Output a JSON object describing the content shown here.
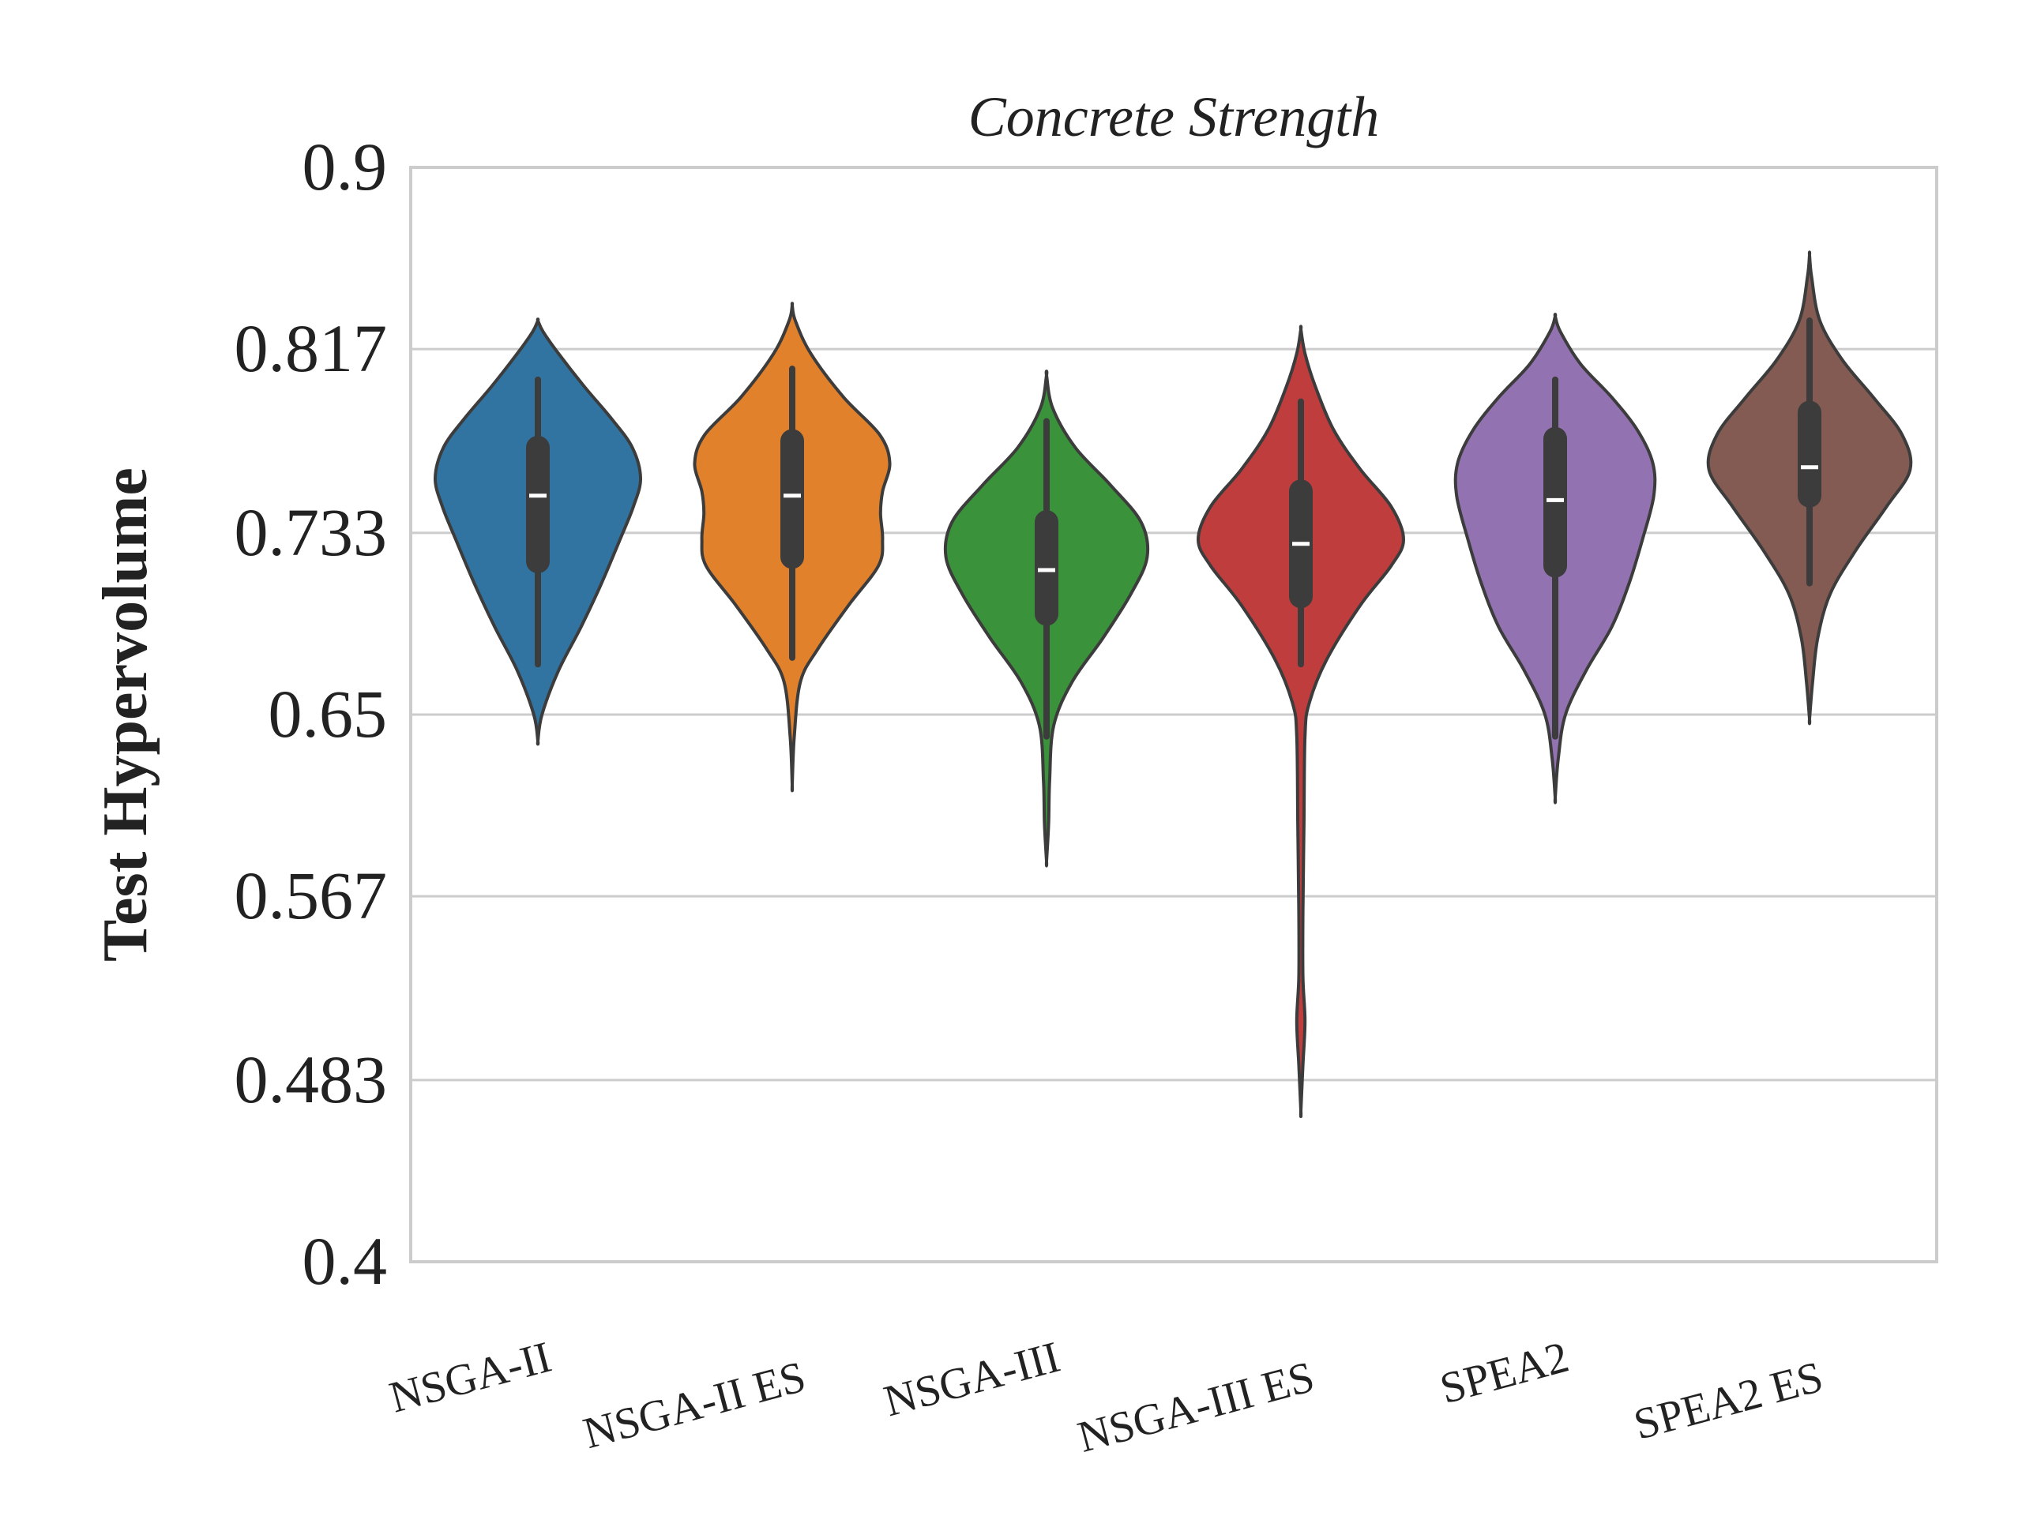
{
  "chart_data": {
    "type": "violin",
    "title": "Concrete Strength",
    "xlabel": "",
    "ylabel": "Test Hypervolume",
    "ylim": [
      0.4,
      0.9
    ],
    "yticks": [
      "0.4",
      "0.483",
      "0.567",
      "0.65",
      "0.733",
      "0.817",
      "0.9"
    ],
    "grid": "horizontal",
    "categories": [
      "NSGA-II",
      "NSGA-II ES",
      "NSGA-III",
      "NSGA-III ES",
      "SPEA2",
      "SPEA2 ES"
    ],
    "colors": [
      "#3274a1",
      "#e1812c",
      "#3a923a",
      "#c03d3e",
      "#9372b2",
      "#845b53"
    ],
    "series": [
      {
        "category": "NSGA-II",
        "min": 0.673,
        "q1": 0.72,
        "median": 0.75,
        "q3": 0.772,
        "max": 0.803,
        "density": [
          [
            0.638,
            0
          ],
          [
            0.65,
            0.04
          ],
          [
            0.67,
            0.2
          ],
          [
            0.69,
            0.42
          ],
          [
            0.71,
            0.62
          ],
          [
            0.73,
            0.8
          ],
          [
            0.745,
            0.93
          ],
          [
            0.758,
            1.0
          ],
          [
            0.772,
            0.92
          ],
          [
            0.785,
            0.72
          ],
          [
            0.8,
            0.45
          ],
          [
            0.815,
            0.2
          ],
          [
            0.825,
            0.05
          ],
          [
            0.83,
            0
          ]
        ]
      },
      {
        "category": "NSGA-II ES",
        "min": 0.676,
        "q1": 0.722,
        "median": 0.75,
        "q3": 0.775,
        "max": 0.808,
        "density": [
          [
            0.618,
            0
          ],
          [
            0.64,
            0.02
          ],
          [
            0.665,
            0.08
          ],
          [
            0.68,
            0.25
          ],
          [
            0.7,
            0.55
          ],
          [
            0.718,
            0.84
          ],
          [
            0.73,
            0.88
          ],
          [
            0.742,
            0.86
          ],
          [
            0.752,
            0.88
          ],
          [
            0.765,
            0.95
          ],
          [
            0.778,
            0.85
          ],
          [
            0.795,
            0.5
          ],
          [
            0.815,
            0.18
          ],
          [
            0.83,
            0.03
          ],
          [
            0.837,
            0
          ]
        ]
      },
      {
        "category": "NSGA-III",
        "min": 0.64,
        "q1": 0.696,
        "median": 0.716,
        "q3": 0.738,
        "max": 0.784,
        "density": [
          [
            0.583,
            0
          ],
          [
            0.6,
            0.02
          ],
          [
            0.62,
            0.03
          ],
          [
            0.645,
            0.07
          ],
          [
            0.665,
            0.25
          ],
          [
            0.685,
            0.55
          ],
          [
            0.705,
            0.82
          ],
          [
            0.722,
            0.98
          ],
          [
            0.738,
            0.92
          ],
          [
            0.755,
            0.62
          ],
          [
            0.772,
            0.28
          ],
          [
            0.79,
            0.06
          ],
          [
            0.805,
            0
          ]
        ]
      },
      {
        "category": "NSGA-III ES",
        "min": 0.673,
        "q1": 0.704,
        "median": 0.728,
        "q3": 0.752,
        "max": 0.793,
        "density": [
          [
            0.469,
            0
          ],
          [
            0.49,
            0.02
          ],
          [
            0.51,
            0.04
          ],
          [
            0.53,
            0.02
          ],
          [
            0.56,
            0.02
          ],
          [
            0.6,
            0.03
          ],
          [
            0.64,
            0.04
          ],
          [
            0.655,
            0.08
          ],
          [
            0.675,
            0.25
          ],
          [
            0.7,
            0.58
          ],
          [
            0.718,
            0.88
          ],
          [
            0.73,
            1.0
          ],
          [
            0.745,
            0.88
          ],
          [
            0.762,
            0.58
          ],
          [
            0.78,
            0.32
          ],
          [
            0.8,
            0.14
          ],
          [
            0.815,
            0.04
          ],
          [
            0.826,
            0
          ]
        ]
      },
      {
        "category": "SPEA2",
        "min": 0.64,
        "q1": 0.718,
        "median": 0.748,
        "q3": 0.776,
        "max": 0.803,
        "density": [
          [
            0.612,
            0
          ],
          [
            0.63,
            0.03
          ],
          [
            0.65,
            0.1
          ],
          [
            0.67,
            0.3
          ],
          [
            0.69,
            0.55
          ],
          [
            0.71,
            0.72
          ],
          [
            0.73,
            0.85
          ],
          [
            0.75,
            0.96
          ],
          [
            0.765,
            0.95
          ],
          [
            0.78,
            0.8
          ],
          [
            0.795,
            0.55
          ],
          [
            0.81,
            0.25
          ],
          [
            0.825,
            0.05
          ],
          [
            0.832,
            0
          ]
        ]
      },
      {
        "category": "SPEA2 ES",
        "min": 0.71,
        "q1": 0.75,
        "median": 0.763,
        "q3": 0.788,
        "max": 0.83,
        "density": [
          [
            0.648,
            0
          ],
          [
            0.665,
            0.03
          ],
          [
            0.685,
            0.08
          ],
          [
            0.705,
            0.2
          ],
          [
            0.725,
            0.45
          ],
          [
            0.745,
            0.75
          ],
          [
            0.762,
            0.98
          ],
          [
            0.778,
            0.9
          ],
          [
            0.795,
            0.62
          ],
          [
            0.812,
            0.32
          ],
          [
            0.83,
            0.1
          ],
          [
            0.85,
            0.02
          ],
          [
            0.86,
            0
          ]
        ]
      }
    ]
  }
}
